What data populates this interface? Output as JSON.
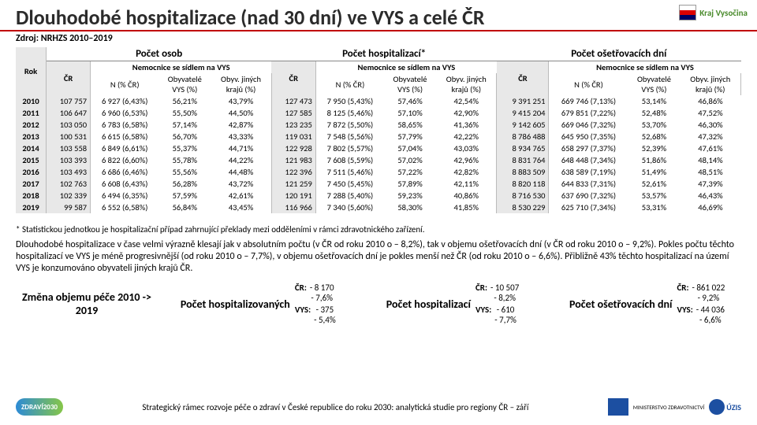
{
  "title": "Dlouhodobé hospitalizace (nad 30 dní) ve VYS a celé ČR",
  "source": "Zdroj: NRHZS 2010–2019",
  "topLogo": {
    "krajText": "Kraj ",
    "krajGreen": "Vysočina"
  },
  "group_headers": [
    "Počet osob",
    "Počet hospitalizací*",
    "Počet ošetřovacích dní"
  ],
  "sub_headers": {
    "rok": "Rok",
    "cr": "ČR",
    "nem": "Nemocnice se sídlem na VYS",
    "n": "N (% ČR)",
    "obyv": "Obyvatelé\nVYS (%)",
    "jin": "Obyv. jiných\nkrajů (%)"
  },
  "rows": [
    {
      "rok": "2010",
      "a_cr": "107 757",
      "a_n": "6 927 (6,43%)",
      "a_o": "56,21%",
      "a_j": "43,79%",
      "b_cr": "127 473",
      "b_n": "7 950 (5,43%)",
      "b_o": "57,46%",
      "b_j": "42,54%",
      "c_cr": "9 391 251",
      "c_n": "669 746 (7,13%)",
      "c_o": "53,14%",
      "c_j": "46,86%"
    },
    {
      "rok": "2011",
      "a_cr": "106 647",
      "a_n": "6 960 (6,53%)",
      "a_o": "55,50%",
      "a_j": "44,50%",
      "b_cr": "127 585",
      "b_n": "8 125 (5,46%)",
      "b_o": "57,10%",
      "b_j": "42,90%",
      "c_cr": "9 415 204",
      "c_n": "679 851 (7,22%)",
      "c_o": "52,48%",
      "c_j": "47,52%"
    },
    {
      "rok": "2012",
      "a_cr": "103 050",
      "a_n": "6 783 (6,58%)",
      "a_o": "57,14%",
      "a_j": "42,87%",
      "b_cr": "123 235",
      "b_n": "7 872 (5,50%)",
      "b_o": "58,65%",
      "b_j": "41,36%",
      "c_cr": "9 142 605",
      "c_n": "669 046 (7,32%)",
      "c_o": "53,70%",
      "c_j": "46,30%"
    },
    {
      "rok": "2013",
      "a_cr": "100 531",
      "a_n": "6 615 (6,58%)",
      "a_o": "56,70%",
      "a_j": "43,33%",
      "b_cr": "119 031",
      "b_n": "7 548 (5,56%)",
      "b_o": "57,79%",
      "b_j": "42,22%",
      "c_cr": "8 786 488",
      "c_n": "645 950 (7,35%)",
      "c_o": "52,68%",
      "c_j": "47,32%"
    },
    {
      "rok": "2014",
      "a_cr": "103 558",
      "a_n": "6 849 (6,61%)",
      "a_o": "55,37%",
      "a_j": "44,71%",
      "b_cr": "122 928",
      "b_n": "7 802 (5,57%)",
      "b_o": "57,04%",
      "b_j": "43,03%",
      "c_cr": "8 934 765",
      "c_n": "658 297 (7,37%)",
      "c_o": "52,39%",
      "c_j": "47,61%"
    },
    {
      "rok": "2015",
      "a_cr": "103 393",
      "a_n": "6 822 (6,60%)",
      "a_o": "55,78%",
      "a_j": "44,22%",
      "b_cr": "121 983",
      "b_n": "7 608 (5,59%)",
      "b_o": "57,02%",
      "b_j": "42,96%",
      "c_cr": "8 831 764",
      "c_n": "648 448 (7,34%)",
      "c_o": "51,86%",
      "c_j": "48,14%"
    },
    {
      "rok": "2016",
      "a_cr": "103 493",
      "a_n": "6 686 (6,46%)",
      "a_o": "55,56%",
      "a_j": "44,48%",
      "b_cr": "122 396",
      "b_n": "7 511 (5,46%)",
      "b_o": "57,22%",
      "b_j": "42,82%",
      "c_cr": "8 883 509",
      "c_n": "638 589 (7,19%)",
      "c_o": "51,49%",
      "c_j": "48,51%"
    },
    {
      "rok": "2017",
      "a_cr": "102 763",
      "a_n": "6 608 (6,43%)",
      "a_o": "56,28%",
      "a_j": "43,72%",
      "b_cr": "121 259",
      "b_n": "7 450 (5,45%)",
      "b_o": "57,89%",
      "b_j": "42,11%",
      "c_cr": "8 820 118",
      "c_n": "644 833 (7,31%)",
      "c_o": "52,61%",
      "c_j": "47,39%"
    },
    {
      "rok": "2018",
      "a_cr": "102 339",
      "a_n": "6 494 (6,35%)",
      "a_o": "57,59%",
      "a_j": "42,61%",
      "b_cr": "120 191",
      "b_n": "7 288 (5,40%)",
      "b_o": "59,23%",
      "b_j": "40,86%",
      "c_cr": "8 716 530",
      "c_n": "637 690 (7,32%)",
      "c_o": "53,57%",
      "c_j": "46,43%"
    },
    {
      "rok": "2019",
      "a_cr": "99 587",
      "a_n": "6 552 (6,58%)",
      "a_o": "56,84%",
      "a_j": "43,45%",
      "b_cr": "116 966",
      "b_n": "7 340 (5,60%)",
      "b_o": "58,30%",
      "b_j": "41,85%",
      "c_cr": "8 530 229",
      "c_n": "625 710 (7,34%)",
      "c_o": "53,31%",
      "c_j": "46,69%"
    }
  ],
  "note": "* Statistickou jednotkou je hospitalizační případ zahrnující překlady mezi odděleními v rámci zdravotnického zařízení.",
  "para": "Dlouhodobé hospitalizace v čase velmi výrazně klesají jak v absolutním počtu (v ČR od roku 2010 o – 8,2%), tak v objemu ošetřovacích dní (v ČR od roku 2010 o – 9,2%). Pokles počtu těchto hospitalizací ve VYS je méně progresivnější (od roku 2010 o – 7,7%), v objemu ošetřovacích dní je pokles menší než ČR (od roku 2010 o – 6,6%). Přibližně 43% těchto hospitalizací na území VYS je konzumováno obyvateli jiných krajů ČR.",
  "summaryLead": "Změna objemu péče 2010 -> 2019",
  "summary": [
    {
      "title": "Počet hospitalizovaných",
      "cr1": "- 8 170",
      "cr2": "- 7,6%",
      "vys1": "- 375",
      "vys2": "- 5,4%"
    },
    {
      "title": "Počet hospitalizací",
      "cr1": "- 10 507",
      "cr2": "- 8,2%",
      "vys1": "- 610",
      "vys2": "- 7,7%"
    },
    {
      "title": "Počet ošetřovacích dní",
      "cr1": "- 861 022",
      "cr2": "- 9,2%",
      "vys1": "- 44 036",
      "vys2": "- 6,6%"
    }
  ],
  "footer": {
    "badge": "ZDRAVÍ2030",
    "caption": "Strategický rámec rozvoje péče o zdraví v České republice do roku 2030: analytická studie pro regiony ČR – září",
    "min": "MINISTERSTVO ZDRAVOTNICTVÍ",
    "uzis": "ÚZIS"
  }
}
